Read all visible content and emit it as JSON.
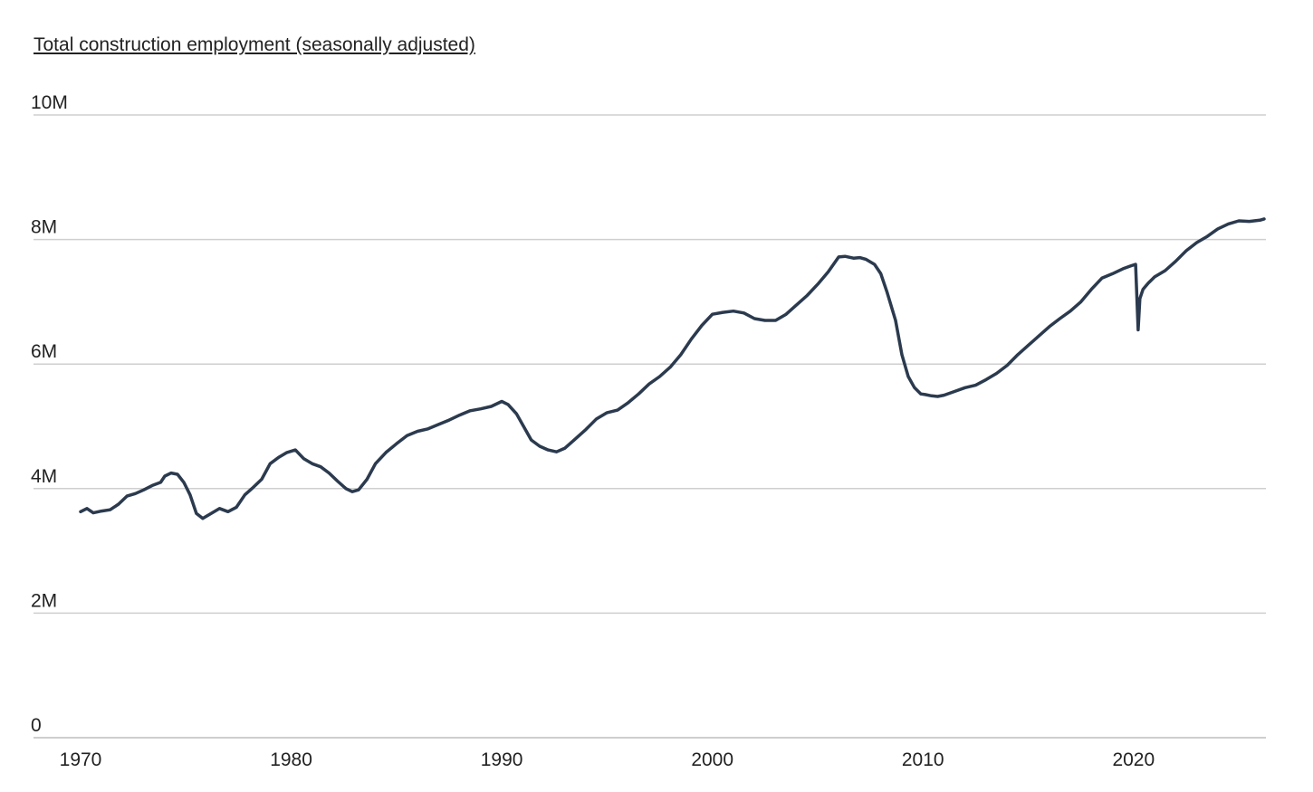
{
  "chart_data": {
    "type": "line",
    "title": "Total construction employment (seasonally adjusted)",
    "xlabel": "",
    "ylabel": "",
    "xlim": [
      1970,
      2026.2
    ],
    "ylim": [
      0,
      10000000
    ],
    "x_ticks": [
      1970,
      1980,
      1990,
      2000,
      2010,
      2020
    ],
    "x_tick_labels": [
      "1970",
      "1980",
      "1990",
      "2000",
      "2010",
      "2020"
    ],
    "y_ticks": [
      0,
      2000000,
      4000000,
      6000000,
      8000000,
      10000000
    ],
    "y_tick_labels": [
      "0",
      "2M",
      "4M",
      "6M",
      "8M",
      "10M"
    ],
    "grid": true,
    "legend": "none",
    "colors": {
      "line": "#2b3a4e",
      "grid": "#cfcfcf"
    },
    "series": [
      {
        "x": [
          1970.0,
          1970.3,
          1970.6,
          1971.0,
          1971.4,
          1971.8,
          1972.2,
          1972.6,
          1973.0,
          1973.4,
          1973.8,
          1974.0,
          1974.3,
          1974.6,
          1974.9,
          1975.2,
          1975.5,
          1975.8,
          1976.2,
          1976.6,
          1977.0,
          1977.4,
          1977.8,
          1978.2,
          1978.6,
          1979.0,
          1979.4,
          1979.8,
          1980.2,
          1980.6,
          1981.0,
          1981.4,
          1981.8,
          1982.2,
          1982.6,
          1982.9,
          1983.2,
          1983.6,
          1984.0,
          1984.5,
          1985.0,
          1985.5,
          1986.0,
          1986.5,
          1987.0,
          1987.5,
          1988.0,
          1988.5,
          1989.0,
          1989.5,
          1990.0,
          1990.3,
          1990.7,
          1991.0,
          1991.4,
          1991.8,
          1992.2,
          1992.6,
          1993.0,
          1993.5,
          1994.0,
          1994.5,
          1995.0,
          1995.5,
          1996.0,
          1996.5,
          1997.0,
          1997.5,
          1998.0,
          1998.5,
          1999.0,
          1999.5,
          2000.0,
          2000.5,
          2001.0,
          2001.5,
          2002.0,
          2002.5,
          2003.0,
          2003.5,
          2004.0,
          2004.5,
          2005.0,
          2005.5,
          2006.0,
          2006.3,
          2006.7,
          2007.0,
          2007.3,
          2007.7,
          2008.0,
          2008.3,
          2008.7,
          2009.0,
          2009.3,
          2009.6,
          2009.9,
          2010.1,
          2010.4,
          2010.7,
          2011.0,
          2011.5,
          2012.0,
          2012.5,
          2013.0,
          2013.5,
          2014.0,
          2014.5,
          2015.0,
          2015.5,
          2016.0,
          2016.5,
          2017.0,
          2017.5,
          2018.0,
          2018.5,
          2019.0,
          2019.5,
          2019.9,
          2020.1,
          2020.22,
          2020.3,
          2020.45,
          2020.7,
          2021.0,
          2021.5,
          2022.0,
          2022.5,
          2023.0,
          2023.5,
          2024.0,
          2024.5,
          2025.0,
          2025.5,
          2026.0,
          2026.2
        ],
        "y": [
          3630000,
          3680000,
          3610000,
          3640000,
          3660000,
          3750000,
          3880000,
          3920000,
          3980000,
          4050000,
          4100000,
          4200000,
          4250000,
          4230000,
          4100000,
          3900000,
          3600000,
          3520000,
          3600000,
          3680000,
          3630000,
          3700000,
          3900000,
          4020000,
          4150000,
          4400000,
          4500000,
          4580000,
          4620000,
          4480000,
          4400000,
          4350000,
          4250000,
          4120000,
          4000000,
          3950000,
          3980000,
          4150000,
          4400000,
          4580000,
          4720000,
          4850000,
          4920000,
          4960000,
          5030000,
          5100000,
          5180000,
          5250000,
          5280000,
          5320000,
          5400000,
          5350000,
          5200000,
          5020000,
          4780000,
          4680000,
          4620000,
          4590000,
          4650000,
          4800000,
          4950000,
          5120000,
          5220000,
          5260000,
          5380000,
          5520000,
          5680000,
          5800000,
          5950000,
          6150000,
          6400000,
          6620000,
          6800000,
          6830000,
          6850000,
          6820000,
          6730000,
          6700000,
          6700000,
          6800000,
          6950000,
          7100000,
          7280000,
          7480000,
          7720000,
          7730000,
          7700000,
          7710000,
          7680000,
          7600000,
          7450000,
          7150000,
          6700000,
          6150000,
          5800000,
          5620000,
          5520000,
          5510000,
          5490000,
          5480000,
          5500000,
          5560000,
          5620000,
          5660000,
          5750000,
          5850000,
          5980000,
          6150000,
          6300000,
          6450000,
          6600000,
          6730000,
          6850000,
          7000000,
          7200000,
          7380000,
          7450000,
          7530000,
          7580000,
          7600000,
          6550000,
          7050000,
          7200000,
          7300000,
          7400000,
          7500000,
          7650000,
          7820000,
          7950000,
          8050000,
          8170000,
          8250000,
          8300000,
          8290000,
          8310000,
          8330000
        ]
      }
    ]
  }
}
